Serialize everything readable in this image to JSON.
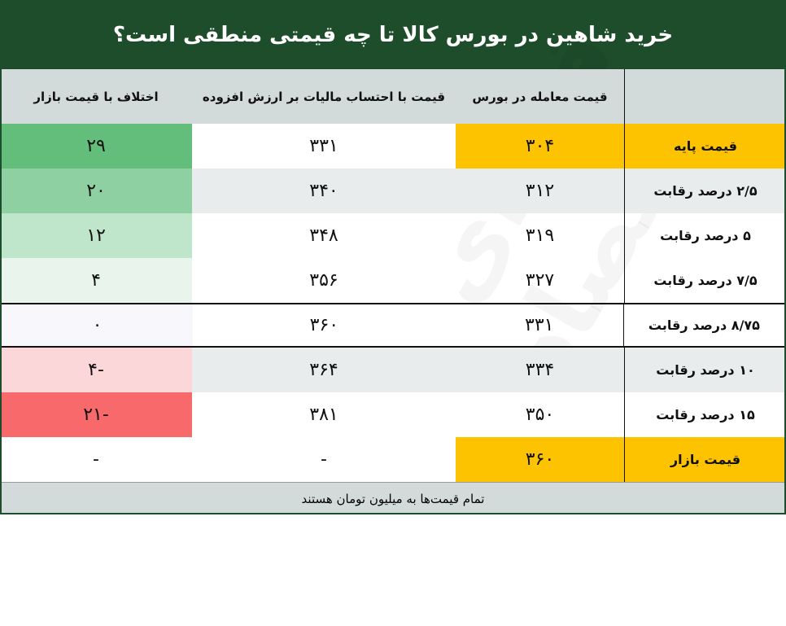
{
  "title": "خرید شاهین در بورس کالا تا چه قیمتی منطقی است؟",
  "headers": [
    "",
    "قیمت معامله در بورس",
    "قیمت با احتساب مالیات بر ارزش افزوده",
    "اختلاف با قیمت بازار"
  ],
  "rows": [
    {
      "label": "قیمت پایه",
      "bourse": "۳۰۴",
      "tax": "۳۳۱",
      "diff": "۲۹",
      "diff_color": "#63be7b",
      "highlight": true,
      "alt": false
    },
    {
      "label": "۲/۵ درصد رقابت",
      "bourse": "۳۱۲",
      "tax": "۳۴۰",
      "diff": "۲۰",
      "diff_color": "#8fd0a2",
      "alt": true
    },
    {
      "label": "۵ درصد رقابت",
      "bourse": "۳۱۹",
      "tax": "۳۴۸",
      "diff": "۱۲",
      "diff_color": "#bfe5cb",
      "alt": false
    },
    {
      "label": "۷/۵ درصد رقابت",
      "bourse": "۳۲۷",
      "tax": "۳۵۶",
      "diff": "۴",
      "diff_color": "#e9f5ec",
      "alt": false
    },
    {
      "label": "۸/۷۵ درصد رقابت",
      "bourse": "۳۳۱",
      "tax": "۳۶۰",
      "diff": "۰",
      "diff_color": "#f8f8fc",
      "alt": false,
      "selected": true
    },
    {
      "label": "۱۰ درصد رقابت",
      "bourse": "۳۳۴",
      "tax": "۳۶۴",
      "diff": "-۴",
      "diff_color": "#fbd7da",
      "alt": true
    },
    {
      "label": "۱۵ درصد رقابت",
      "bourse": "۳۵۰",
      "tax": "۳۸۱",
      "diff": "-۲۱",
      "diff_color": "#f8696b",
      "alt": false
    },
    {
      "label": "قیمت بازار",
      "bourse": "۳۶۰",
      "tax": "-",
      "diff": "-",
      "highlight": true,
      "alt": false
    }
  ],
  "footer": "تمام قیمت‌ها به میلیون تومان هستند",
  "watermark": "فردای اقتصاد",
  "colors": {
    "title_bg": "#1e4d2b",
    "highlight": "#fdc300",
    "header_bg": "#d3dada"
  }
}
